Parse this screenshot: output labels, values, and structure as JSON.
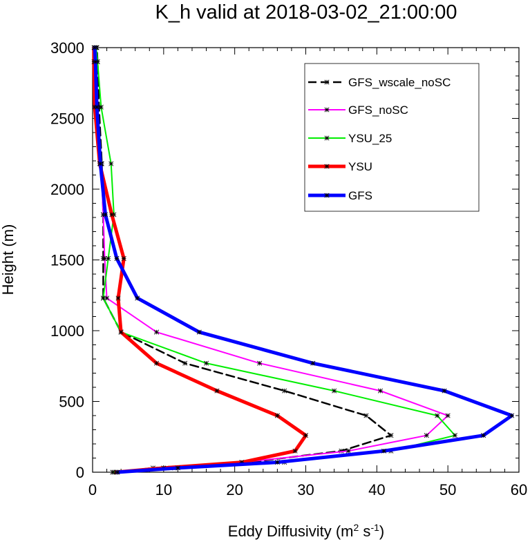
{
  "chart_data": {
    "type": "line",
    "title": "K_h valid at 2018-03-02_21:00:00",
    "xlabel_main": "Eddy Diffusivity (m",
    "xlabel_sup1": "2",
    "xlabel_mid": " s",
    "xlabel_sup2": "-1",
    "xlabel_end": ")",
    "ylabel": "Height (m)",
    "xlim": [
      0,
      60
    ],
    "ylim": [
      0,
      3000
    ],
    "xticks": [
      "0",
      "10",
      "20",
      "30",
      "40",
      "50",
      "60"
    ],
    "yticks": [
      "0",
      "500",
      "1000",
      "1500",
      "2000",
      "2500",
      "3000"
    ],
    "legend_position": "top-right",
    "series": [
      {
        "name": "GFS_wscale_noSC",
        "color": "#000000",
        "dash": true,
        "width": 2.5,
        "x": [
          3.3,
          8.5,
          22,
          35,
          42,
          38.5,
          27,
          13,
          4,
          1.5,
          1.5,
          1.5,
          1.3,
          0.9,
          0.7,
          0.6
        ],
        "y": [
          0,
          30,
          70,
          150,
          260,
          400,
          575,
          770,
          990,
          1230,
          1510,
          1820,
          2180,
          2580,
          2900,
          3000
        ]
      },
      {
        "name": "GFS_noSC",
        "color": "#ff00ff",
        "dash": false,
        "width": 2,
        "x": [
          3,
          11,
          21,
          36,
          47,
          50,
          40.5,
          23.5,
          9,
          2,
          1.7,
          1.5,
          1.2,
          0.7,
          0.5,
          0.5
        ],
        "y": [
          0,
          30,
          70,
          150,
          260,
          400,
          575,
          770,
          990,
          1230,
          1510,
          1820,
          2180,
          2580,
          2900,
          3000
        ]
      },
      {
        "name": "YSU_25",
        "color": "#00ee00",
        "dash": false,
        "width": 2,
        "x": [
          2.8,
          11.5,
          27,
          42,
          51,
          48.5,
          34,
          16,
          4,
          1.5,
          2.2,
          3,
          2.6,
          1.2,
          0.7,
          0.5
        ],
        "y": [
          0,
          30,
          70,
          150,
          260,
          400,
          575,
          770,
          990,
          1230,
          1510,
          1820,
          2180,
          2580,
          2900,
          3000
        ]
      },
      {
        "name": "YSU",
        "color": "#ff0000",
        "dash": false,
        "width": 5,
        "x": [
          3.3,
          10,
          21,
          28.5,
          30,
          26,
          17.5,
          9,
          4,
          3.6,
          4.4,
          2.7,
          1,
          0.3,
          0.2,
          0.2
        ],
        "y": [
          0,
          30,
          70,
          150,
          260,
          400,
          575,
          770,
          990,
          1230,
          1510,
          1820,
          2180,
          2580,
          2900,
          3000
        ]
      },
      {
        "name": "GFS",
        "color": "#0000ff",
        "dash": false,
        "width": 5,
        "x": [
          3.5,
          12,
          26,
          41,
          55,
          59,
          49.5,
          31,
          15,
          6.3,
          3.4,
          1.8,
          1.1,
          0.6,
          0.4,
          0.3
        ],
        "y": [
          0,
          30,
          70,
          150,
          260,
          400,
          575,
          770,
          990,
          1230,
          1510,
          1820,
          2180,
          2580,
          2900,
          3000
        ]
      }
    ]
  }
}
